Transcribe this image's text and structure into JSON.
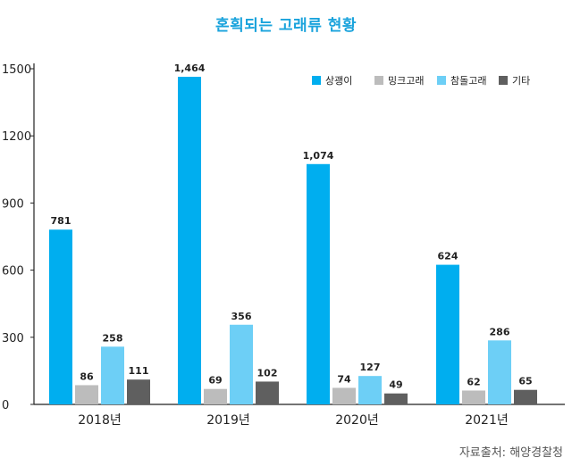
{
  "chart_data": {
    "type": "bar",
    "title": "혼획되는 고래류 현황",
    "categories": [
      "2018년",
      "2019년",
      "2020년",
      "2021년"
    ],
    "series": [
      {
        "name": "상괭이",
        "color": "#00aeef",
        "values": [
          781,
          1464,
          1074,
          624
        ],
        "labels": [
          "781",
          "1,464",
          "1,074",
          "624"
        ]
      },
      {
        "name": "밍크고래",
        "color": "#bcbcbc",
        "values": [
          86,
          69,
          74,
          62
        ],
        "labels": [
          "86",
          "69",
          "74",
          "62"
        ]
      },
      {
        "name": "참돌고래",
        "color": "#6dcff6",
        "values": [
          258,
          356,
          127,
          286
        ],
        "labels": [
          "258",
          "356",
          "127",
          "286"
        ]
      },
      {
        "name": "기타",
        "color": "#5f5f5f",
        "values": [
          111,
          102,
          49,
          65
        ],
        "labels": [
          "111",
          "102",
          "49",
          "65"
        ]
      }
    ],
    "yticks": [
      0,
      300,
      600,
      900,
      1200,
      1500
    ],
    "ylim": [
      0,
      1500
    ],
    "legend": "top-right",
    "grid": false,
    "source": "자료출처: 해양경찰청"
  }
}
